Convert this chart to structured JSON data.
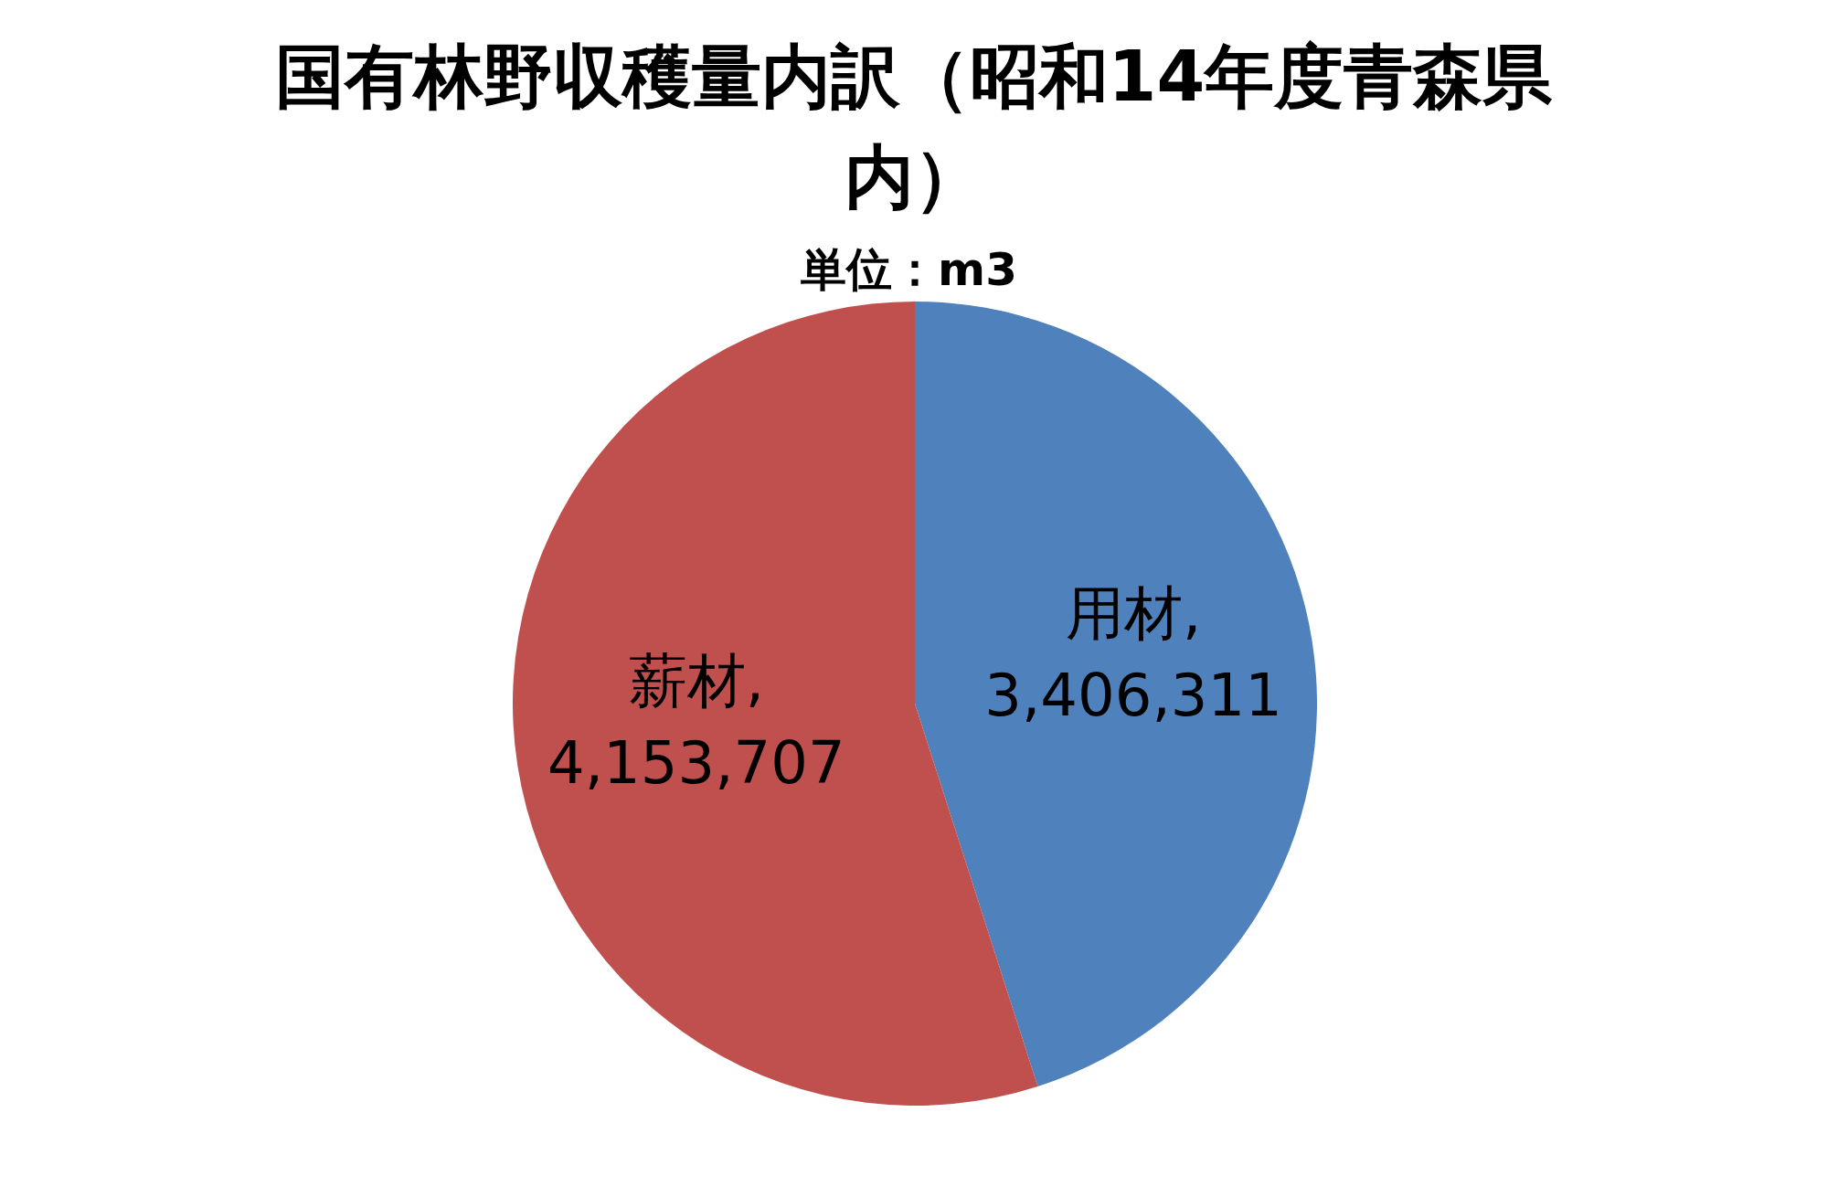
{
  "chart_data": {
    "type": "pie",
    "title": "国有林野収穫量内訳（昭和14年度青森県内）",
    "subtitle": "単位：m3",
    "categories": [
      "用材",
      "薪材"
    ],
    "values": [
      3406311,
      4153707
    ],
    "colors": [
      "#4f81bd",
      "#c0504d"
    ],
    "value_labels": [
      ", 3,406,311",
      ", 4,153,707"
    ],
    "legend": false
  }
}
